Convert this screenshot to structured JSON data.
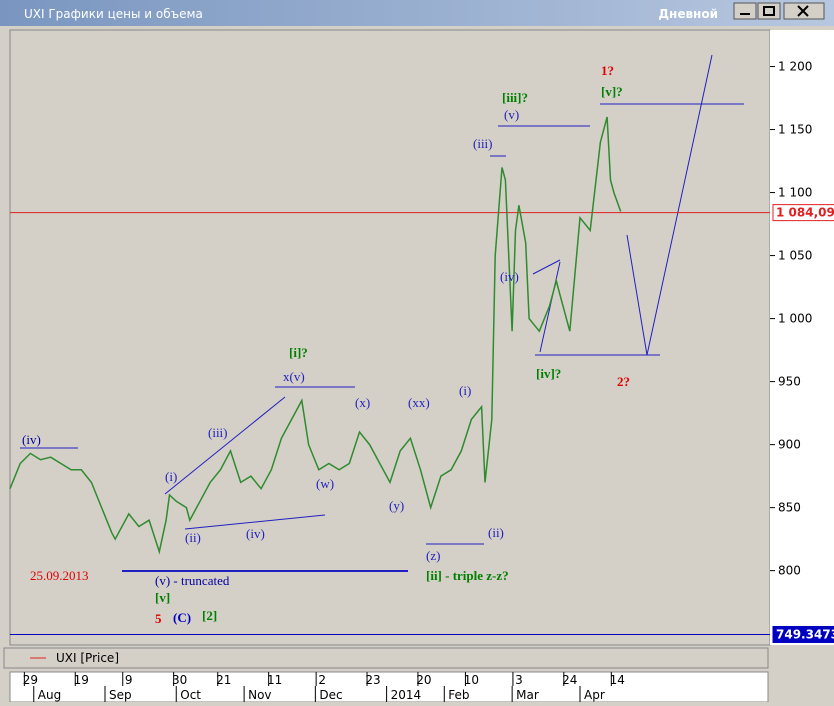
{
  "window": {
    "title": "UXI Графики цены и объема",
    "period": "Дневной"
  },
  "chart_data": {
    "type": "line",
    "series": [
      {
        "name": "UXI [Price]",
        "color": "#2e8b2e",
        "x": [
          0,
          3,
          6,
          9,
          12,
          15,
          18,
          21,
          24,
          27,
          30,
          31,
          34,
          35,
          38,
          41,
          44,
          46,
          47,
          49,
          52,
          53,
          56,
          59,
          62,
          65,
          68,
          71,
          74,
          77,
          80,
          83,
          86,
          88,
          91,
          94,
          97,
          100,
          103,
          106,
          109,
          112,
          115,
          118,
          121,
          124,
          127,
          130,
          133,
          136,
          139,
          140,
          142,
          143,
          145,
          146,
          148,
          149,
          150,
          152,
          153,
          156,
          159,
          161,
          162,
          165,
          168,
          171,
          174,
          176,
          177,
          178,
          180
        ],
        "values": [
          865,
          885,
          893,
          888,
          890,
          885,
          880,
          880,
          870,
          850,
          830,
          825,
          840,
          845,
          835,
          840,
          815,
          840,
          860,
          855,
          850,
          840,
          855,
          870,
          880,
          895,
          870,
          875,
          865,
          880,
          905,
          920,
          935,
          900,
          880,
          885,
          880,
          885,
          910,
          900,
          885,
          870,
          895,
          905,
          880,
          850,
          875,
          880,
          895,
          920,
          930,
          870,
          920,
          1050,
          1120,
          1110,
          990,
          1070,
          1090,
          1060,
          1000,
          990,
          1010,
          1030,
          1020,
          990,
          1080,
          1070,
          1140,
          1160,
          1110,
          1100,
          1085
        ]
      }
    ],
    "xlim": [
      0,
      224
    ],
    "xticks": [
      {
        "value": 6,
        "label": "29"
      },
      {
        "value": 21,
        "label": "19"
      },
      {
        "value": 35,
        "label": "9"
      },
      {
        "value": 50,
        "label": "30"
      },
      {
        "value": 63,
        "label": "21"
      },
      {
        "value": 78,
        "label": "11"
      },
      {
        "value": 92,
        "label": "2"
      },
      {
        "value": 107,
        "label": "23"
      },
      {
        "value": 122,
        "label": "20"
      },
      {
        "value": 136,
        "label": "10"
      },
      {
        "value": 150,
        "label": "3"
      },
      {
        "value": 165,
        "label": "24"
      },
      {
        "value": 179,
        "label": "14"
      }
    ],
    "month_ticks": [
      {
        "value": 7,
        "label": "Aug"
      },
      {
        "value": 28,
        "label": "Sep"
      },
      {
        "value": 49,
        "label": "Oct"
      },
      {
        "value": 69,
        "label": "Nov"
      },
      {
        "value": 90,
        "label": "Dec"
      },
      {
        "value": 111,
        "label": "2014"
      },
      {
        "value": 128,
        "label": "Feb"
      },
      {
        "value": 148,
        "label": "Mar"
      },
      {
        "value": 168,
        "label": "Apr"
      }
    ],
    "ylim": [
      741,
      1229
    ],
    "yticks": [
      800,
      850,
      900,
      950,
      {
        "value": 1000,
        "label": "1 000"
      },
      {
        "value": 1050,
        "label": "1 050"
      },
      {
        "value": 1100,
        "label": "1 100"
      },
      {
        "value": 1150,
        "label": "1 150"
      },
      {
        "value": 1200,
        "label": "1 200"
      }
    ],
    "price_lines": [
      {
        "value": 1084.09,
        "label": "1 084,09",
        "color": "#e02020"
      },
      {
        "value": 749.3473,
        "label": "749.3473",
        "color": "#0000c0"
      }
    ],
    "annotations": [
      {
        "text": "(iv)",
        "color": "#0000a0"
      },
      {
        "text": "25.09.2013",
        "color": "#e00000"
      },
      {
        "text": "(v) - truncated",
        "color": "#0000a0"
      },
      {
        "text": "[v]",
        "color": "#008000"
      },
      {
        "text": "5",
        "color": "#e00000"
      },
      {
        "text": "(C)",
        "color": "#0000c0"
      },
      {
        "text": "[2]",
        "color": "#008000"
      },
      {
        "text": "(i)",
        "color": "#2020c0"
      },
      {
        "text": "(ii)",
        "color": "#2020c0"
      },
      {
        "text": "(iii)",
        "color": "#2020c0"
      },
      {
        "text": "(iv)",
        "color": "#2020c0"
      },
      {
        "text": "x(v)",
        "color": "#2020c0"
      },
      {
        "text": "[i]?",
        "color": "#008000"
      },
      {
        "text": "(w)",
        "color": "#2020c0"
      },
      {
        "text": "(x)",
        "color": "#2020c0"
      },
      {
        "text": "(y)",
        "color": "#2020c0"
      },
      {
        "text": "(xx)",
        "color": "#2020c0"
      },
      {
        "text": "(i)",
        "color": "#2020c0"
      },
      {
        "text": "(ii)",
        "color": "#2020c0"
      },
      {
        "text": "(z)",
        "color": "#2020c0"
      },
      {
        "text": "[ii] - triple z-z?",
        "color": "#008000"
      },
      {
        "text": "(iii)",
        "color": "#2020c0"
      },
      {
        "text": "(v)",
        "color": "#2020c0"
      },
      {
        "text": "[iii]?",
        "color": "#008000"
      },
      {
        "text": "1?",
        "color": "#e00000"
      },
      {
        "text": "[v]?",
        "color": "#008000"
      },
      {
        "text": "(iv)",
        "color": "#2020c0"
      },
      {
        "text": "[iv]?",
        "color": "#008000"
      },
      {
        "text": "2?",
        "color": "#e00000"
      }
    ]
  }
}
